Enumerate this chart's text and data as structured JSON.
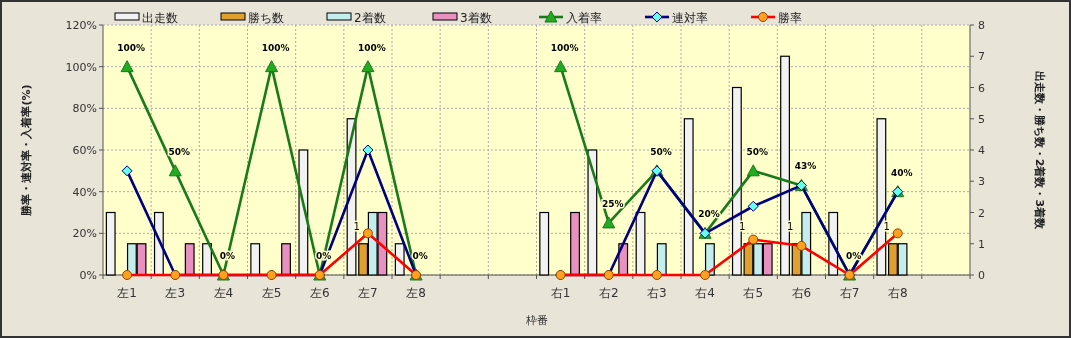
{
  "chart_data": {
    "type": "bar",
    "xlabel": "枠番",
    "ylabel": "勝率・連対率・入着率(%)",
    "y2label": "出走数・勝ち数・2着数・3着数",
    "categories": [
      "左1",
      "左3",
      "左4",
      "左5",
      "左6",
      "左7",
      "左8",
      null,
      null,
      "右1",
      "右2",
      "右3",
      "右4",
      "右5",
      "右6",
      "右7",
      "右8",
      null
    ],
    "series": [
      {
        "name": "出走数",
        "axis": "y2",
        "color": "#f2f2f2",
        "values": [
          2,
          2,
          1,
          1,
          4,
          5,
          1,
          null,
          null,
          2,
          4,
          2,
          5,
          6,
          7,
          2,
          5,
          null
        ]
      },
      {
        "name": "勝ち数",
        "axis": "y2",
        "color": "#e0a030",
        "values": [
          0,
          0,
          0,
          0,
          0,
          1,
          0,
          null,
          null,
          0,
          0,
          0,
          0,
          1,
          1,
          0,
          1,
          null
        ],
        "value_labels": [
          null,
          null,
          null,
          null,
          null,
          "1",
          null,
          null,
          null,
          null,
          null,
          null,
          null,
          "1",
          "1",
          null,
          "1",
          null
        ]
      },
      {
        "name": "2着数",
        "axis": "y2",
        "color": "#c4eeee",
        "values": [
          1,
          0,
          0,
          0,
          0,
          2,
          0,
          null,
          null,
          0,
          0,
          1,
          1,
          1,
          2,
          0,
          1,
          null
        ]
      },
      {
        "name": "3着数",
        "axis": "y2",
        "color": "#e890c0",
        "values": [
          1,
          1,
          0,
          1,
          0,
          2,
          0,
          null,
          null,
          2,
          1,
          0,
          0,
          1,
          0,
          0,
          0,
          null
        ]
      },
      {
        "name": "入着率",
        "type": "line",
        "color": "#1a7a1a",
        "marker": "triangle",
        "values": [
          100,
          50,
          0,
          100,
          0,
          100,
          0,
          null,
          null,
          100,
          25,
          50,
          20,
          50,
          43,
          0,
          40,
          null
        ],
        "value_labels": [
          "100%",
          "50%",
          "0%",
          "100%",
          "0%",
          "100%",
          "0%",
          null,
          null,
          "100%",
          "25%",
          "50%",
          "20%",
          "50%",
          "43%",
          "0%",
          "40%",
          null
        ]
      },
      {
        "name": "連対率",
        "type": "line",
        "color": "#000080",
        "marker": "diamond",
        "values": [
          50,
          0,
          0,
          0,
          0,
          60,
          0,
          null,
          null,
          0,
          0,
          50,
          20,
          33,
          43,
          0,
          40,
          null
        ]
      },
      {
        "name": "勝率",
        "type": "line",
        "color": "#ff0000",
        "marker": "circle",
        "values": [
          0,
          0,
          0,
          0,
          0,
          20,
          0,
          null,
          null,
          0,
          0,
          0,
          0,
          17,
          14,
          0,
          20,
          null
        ]
      }
    ],
    "ylim": [
      0,
      120
    ],
    "yticks": [
      {
        "value": 0,
        "label": "0%"
      },
      {
        "value": 20,
        "label": "20%"
      },
      {
        "value": 40,
        "label": "40%"
      },
      {
        "value": 60,
        "label": "60%"
      },
      {
        "value": 80,
        "label": "80%"
      },
      {
        "value": 100,
        "label": "100%"
      },
      {
        "value": 120,
        "label": "120%"
      }
    ],
    "y2lim": [
      0,
      8
    ],
    "y2ticks": [
      0,
      1,
      2,
      3,
      4,
      5,
      6,
      7,
      8
    ],
    "grid": true,
    "legend": "top"
  }
}
